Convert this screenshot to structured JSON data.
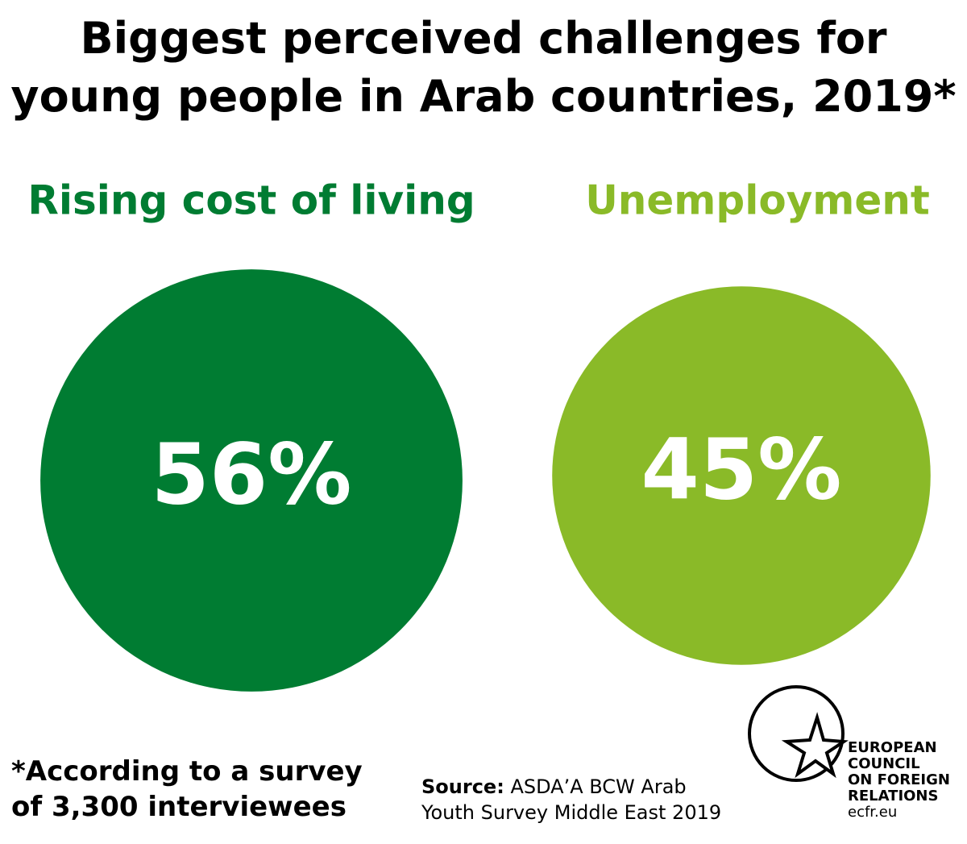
{
  "chart_data": {
    "type": "bubble",
    "title": "Biggest perceived challenges for young people in Arab countries, 2019*",
    "categories": [
      "Rising cost of living",
      "Unemployment"
    ],
    "values": [
      56,
      45
    ],
    "value_labels": [
      "56%",
      "45%"
    ],
    "colors": [
      "#007c32",
      "#8aba28"
    ]
  },
  "footnote": "*According to a survey of 3,300 interviewees",
  "source": {
    "label": "Source:",
    "text": "ASDA’A BCW Arab Youth Survey Middle East 2019"
  },
  "logo": {
    "lines": [
      "EUROPEAN",
      "COUNCIL",
      "ON FOREIGN",
      "RELATIONS"
    ],
    "url": "ecfr.eu"
  }
}
